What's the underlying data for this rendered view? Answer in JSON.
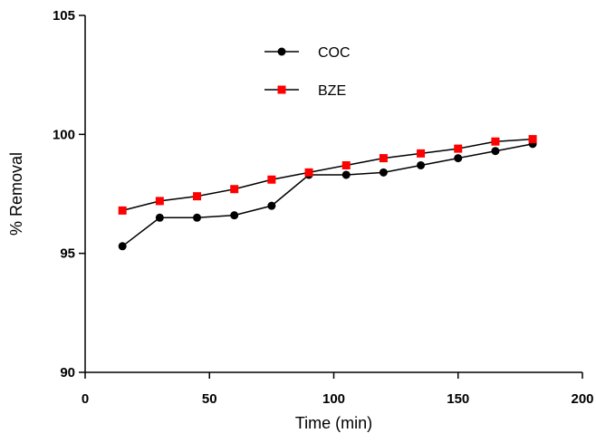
{
  "chart_data": {
    "type": "line",
    "title": "",
    "xlabel": "Time (min)",
    "ylabel": "% Removal",
    "xlim": [
      0,
      200
    ],
    "ylim": [
      90,
      105
    ],
    "xticks": [
      0,
      50,
      100,
      150,
      200
    ],
    "yticks": [
      90,
      95,
      100,
      105
    ],
    "x": [
      15,
      30,
      45,
      60,
      75,
      90,
      105,
      120,
      135,
      150,
      165,
      180
    ],
    "series": [
      {
        "name": "COC",
        "color": "#000000",
        "marker": "circle",
        "values": [
          95.3,
          96.5,
          96.5,
          96.6,
          97.0,
          98.3,
          98.3,
          98.4,
          98.7,
          99.0,
          99.3,
          99.6
        ]
      },
      {
        "name": "BZE",
        "color": "#ff0000",
        "marker": "square",
        "values": [
          96.8,
          97.2,
          97.4,
          97.7,
          98.1,
          98.4,
          98.7,
          99.0,
          99.2,
          99.4,
          99.7,
          99.8
        ]
      }
    ],
    "legend_position": "top-center",
    "grid": false
  }
}
